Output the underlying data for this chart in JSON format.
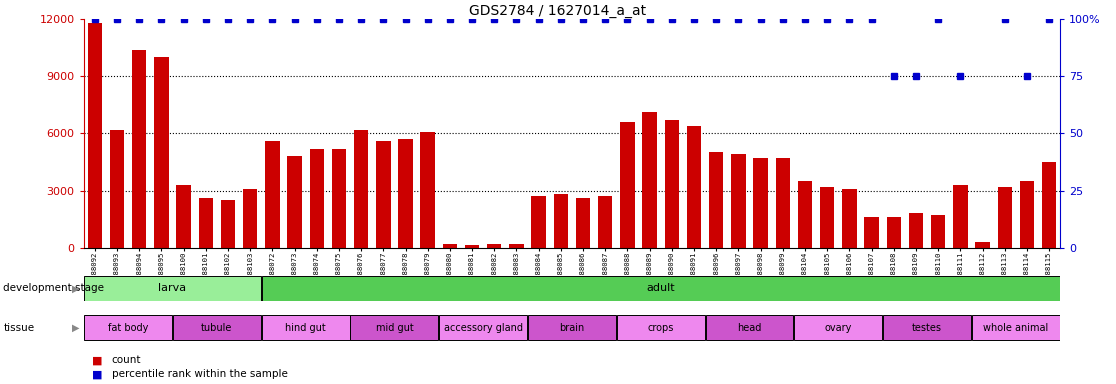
{
  "title": "GDS2784 / 1627014_a_at",
  "samples": [
    "GSM188092",
    "GSM188093",
    "GSM188094",
    "GSM188095",
    "GSM188100",
    "GSM188101",
    "GSM188102",
    "GSM188103",
    "GSM188072",
    "GSM188073",
    "GSM188074",
    "GSM188075",
    "GSM188076",
    "GSM188077",
    "GSM188078",
    "GSM188079",
    "GSM188080",
    "GSM188081",
    "GSM188082",
    "GSM188083",
    "GSM188084",
    "GSM188085",
    "GSM188086",
    "GSM188087",
    "GSM188088",
    "GSM188089",
    "GSM188090",
    "GSM188091",
    "GSM188096",
    "GSM188097",
    "GSM188098",
    "GSM188099",
    "GSM188104",
    "GSM188105",
    "GSM188106",
    "GSM188107",
    "GSM188108",
    "GSM188109",
    "GSM188110",
    "GSM188111",
    "GSM188112",
    "GSM188113",
    "GSM188114",
    "GSM188115"
  ],
  "counts": [
    11800,
    6200,
    10400,
    10000,
    3300,
    2600,
    2500,
    3100,
    5600,
    4800,
    5200,
    5200,
    6200,
    5600,
    5700,
    6100,
    200,
    150,
    180,
    170,
    2700,
    2800,
    2600,
    2700,
    6600,
    7100,
    6700,
    6400,
    5000,
    4900,
    4700,
    4700,
    3500,
    3200,
    3100,
    1600,
    1600,
    1800,
    1700,
    3300,
    300,
    3200,
    3500,
    4500
  ],
  "percentile_values": [
    100,
    100,
    100,
    100,
    100,
    100,
    100,
    100,
    100,
    100,
    100,
    100,
    100,
    100,
    100,
    100,
    100,
    100,
    100,
    100,
    100,
    100,
    100,
    100,
    100,
    100,
    100,
    100,
    100,
    100,
    100,
    100,
    100,
    100,
    100,
    100,
    75,
    75,
    100,
    75,
    100,
    100,
    75,
    100
  ],
  "percentile_visible": [
    true,
    true,
    true,
    true,
    true,
    true,
    true,
    true,
    true,
    true,
    true,
    true,
    true,
    true,
    true,
    true,
    true,
    true,
    true,
    true,
    true,
    true,
    true,
    true,
    true,
    true,
    true,
    true,
    true,
    true,
    true,
    true,
    true,
    true,
    true,
    true,
    true,
    true,
    true,
    true,
    false,
    true,
    true,
    true
  ],
  "bar_color": "#cc0000",
  "dot_color": "#0000cc",
  "ylim_left": [
    0,
    12000
  ],
  "ylim_right": [
    0,
    100
  ],
  "yticks_left": [
    0,
    3000,
    6000,
    9000,
    12000
  ],
  "yticks_right": [
    0,
    25,
    50,
    75,
    100
  ],
  "dev_stage_groups": [
    {
      "label": "larva",
      "start": 0,
      "end": 7,
      "color": "#99ee99"
    },
    {
      "label": "adult",
      "start": 8,
      "end": 43,
      "color": "#55cc55"
    }
  ],
  "tissue_groups": [
    {
      "label": "fat body",
      "start": 0,
      "end": 3,
      "color": "#ee88ee"
    },
    {
      "label": "tubule",
      "start": 4,
      "end": 7,
      "color": "#cc55cc"
    },
    {
      "label": "hind gut",
      "start": 8,
      "end": 11,
      "color": "#ee88ee"
    },
    {
      "label": "mid gut",
      "start": 12,
      "end": 15,
      "color": "#cc55cc"
    },
    {
      "label": "accessory gland",
      "start": 16,
      "end": 19,
      "color": "#ee88ee"
    },
    {
      "label": "brain",
      "start": 20,
      "end": 23,
      "color": "#cc55cc"
    },
    {
      "label": "crops",
      "start": 24,
      "end": 27,
      "color": "#ee88ee"
    },
    {
      "label": "head",
      "start": 28,
      "end": 31,
      "color": "#cc55cc"
    },
    {
      "label": "ovary",
      "start": 32,
      "end": 35,
      "color": "#ee88ee"
    },
    {
      "label": "testes",
      "start": 36,
      "end": 39,
      "color": "#cc55cc"
    },
    {
      "label": "whole animal",
      "start": 40,
      "end": 43,
      "color": "#ee88ee"
    }
  ]
}
